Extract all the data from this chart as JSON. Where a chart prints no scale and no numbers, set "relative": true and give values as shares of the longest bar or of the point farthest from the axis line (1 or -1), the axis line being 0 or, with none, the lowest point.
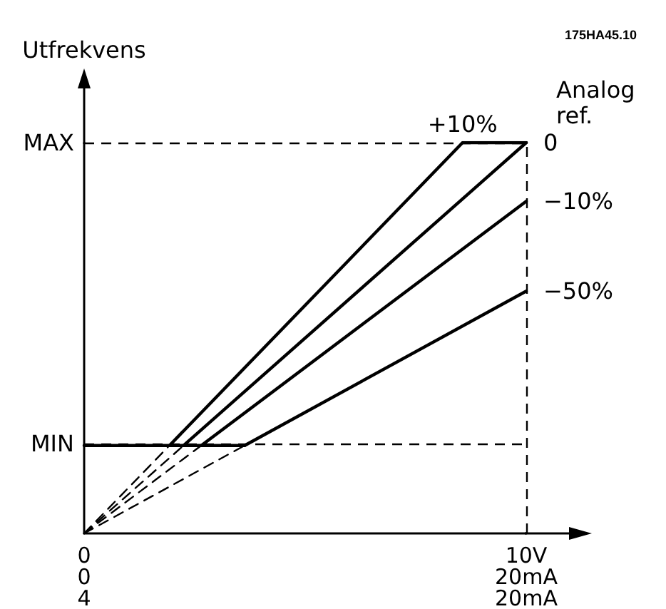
{
  "chart_data": {
    "type": "line",
    "ylabel": "Utfrekvens",
    "legend_title": "Analog\nref.",
    "annotations": [
      "175HA45.10",
      {
        "text": "4",
        "x": 0,
        "y": 0
      },
      {
        "text": "20mA",
        "x": 10,
        "y": 0
      }
    ],
    "relative": true,
    "xlim": [
      0,
      10
    ],
    "xticks": [
      0,
      {
        "value": 10,
        "label": "10V"
      }
    ],
    "x2lim": [
      0,
      20
    ],
    "x2ticks": [
      0,
      {
        "value": 20,
        "label": "20mA"
      }
    ],
    "tick_labels": "x",
    "marker": "none",
    "ref_lines": [
      {
        "axis": "y",
        "value": 1,
        "label": "MAX",
        "color": "#000000",
        "line_style": "dashed"
      },
      {
        "axis": "y",
        "value": 0.225,
        "label": "MIN",
        "color": "#000000",
        "line_style": "dashed"
      },
      {
        "axis": "x",
        "value": 10,
        "color": "#000000",
        "line_style": "dashed"
      }
    ],
    "series": [
      {
        "name": "+10%",
        "color": "#000000",
        "x": [
          1.93,
          8.56,
          10
        ],
        "values": [
          0.225,
          1,
          1
        ]
      },
      {
        "name": "0",
        "color": "#000000",
        "x": [
          2.25,
          10
        ],
        "values": [
          0.225,
          1
        ]
      },
      {
        "name": "−10%",
        "color": "#000000",
        "x": [
          2.65,
          10
        ],
        "values": [
          0.225,
          0.85
        ]
      },
      {
        "name": "−50%",
        "color": "#000000",
        "x": [
          3.63,
          10
        ],
        "values": [
          0.225,
          0.62
        ]
      },
      {
        "color": "#000000",
        "x": [
          0,
          3.63
        ],
        "values": [
          0.225,
          0.225
        ]
      },
      {
        "color": "#000000",
        "line_style": "dashed",
        "x": [
          0,
          1.93
        ],
        "values": [
          0,
          0.225
        ]
      },
      {
        "color": "#000000",
        "line_style": "dashed",
        "x": [
          0,
          2.25
        ],
        "values": [
          0,
          0.225
        ]
      },
      {
        "color": "#000000",
        "line_style": "dashed",
        "x": [
          0,
          2.65
        ],
        "values": [
          0,
          0.225
        ]
      },
      {
        "color": "#000000",
        "line_style": "dashed",
        "x": [
          0,
          3.63
        ],
        "values": [
          0,
          0.225
        ]
      }
    ]
  }
}
